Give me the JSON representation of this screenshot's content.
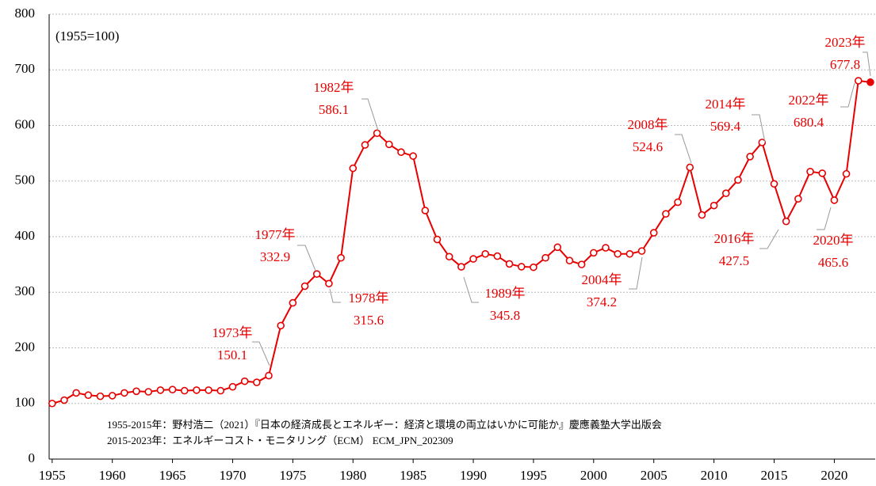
{
  "chart_data": {
    "type": "line",
    "subtitle": "(1955=100)",
    "x": [
      1955,
      1956,
      1957,
      1958,
      1959,
      1960,
      1961,
      1962,
      1963,
      1964,
      1965,
      1966,
      1967,
      1968,
      1969,
      1970,
      1971,
      1972,
      1973,
      1974,
      1975,
      1976,
      1977,
      1978,
      1979,
      1980,
      1981,
      1982,
      1983,
      1984,
      1985,
      1986,
      1987,
      1988,
      1989,
      1990,
      1991,
      1992,
      1993,
      1994,
      1995,
      1996,
      1997,
      1998,
      1999,
      2000,
      2001,
      2002,
      2003,
      2004,
      2005,
      2006,
      2007,
      2008,
      2009,
      2010,
      2011,
      2012,
      2013,
      2014,
      2015,
      2016,
      2017,
      2018,
      2019,
      2020,
      2021,
      2022,
      2023
    ],
    "series": [
      {
        "color": "#e60000",
        "values": [
          100,
          106,
          119,
          115,
          113,
          114,
          119,
          122,
          121,
          124,
          125,
          123,
          124,
          124,
          123,
          130,
          140,
          138,
          150.1,
          240,
          281,
          311,
          332.9,
          315.6,
          362,
          523,
          565,
          586.1,
          566,
          552,
          545,
          447,
          395,
          364,
          345.8,
          360,
          369,
          365,
          351,
          346,
          345,
          362,
          381,
          357,
          350,
          371,
          380,
          369,
          369,
          374.2,
          407,
          441,
          462,
          524.6,
          439,
          456,
          478,
          502,
          544,
          569.4,
          495,
          427.5,
          468,
          517,
          514,
          465.6,
          513,
          680.4,
          677.8
        ]
      }
    ],
    "xlim": [
      1954.75,
      2023.4
    ],
    "xticks": [
      1955,
      1960,
      1965,
      1970,
      1975,
      1980,
      1985,
      1990,
      1995,
      2000,
      2005,
      2010,
      2015,
      2020
    ],
    "ylim": [
      0,
      800
    ],
    "yticks": [
      0,
      100,
      200,
      300,
      400,
      500,
      600,
      700,
      800
    ],
    "grid": true,
    "annotations": [
      {
        "x": 1973,
        "text": "1973年"
      },
      {
        "x": 1977,
        "text": "1977年"
      },
      {
        "x": 1978,
        "text": "1978年"
      },
      {
        "x": 1982,
        "text": "1982年"
      },
      {
        "x": 1989,
        "text": "1989年"
      },
      {
        "x": 2004,
        "text": "2004年"
      },
      {
        "x": 2008,
        "text": "2008年"
      },
      {
        "x": 2014,
        "text": "2014年"
      },
      {
        "x": 2016,
        "text": "2016年"
      },
      {
        "x": 2020,
        "text": "2020年"
      },
      {
        "x": 2022,
        "text": "2022年"
      },
      {
        "x": 2023,
        "text": "2023年"
      }
    ],
    "notes": [
      "1955-2015年：野村浩二（2021）『日本の経済成長とエネルギー：経済と環境の両立はいかに可能か』慶應義塾大学出版会",
      "2015-2023年：エネルギーコスト・モニタリング（ECM） ECM_JPN_202309"
    ]
  }
}
